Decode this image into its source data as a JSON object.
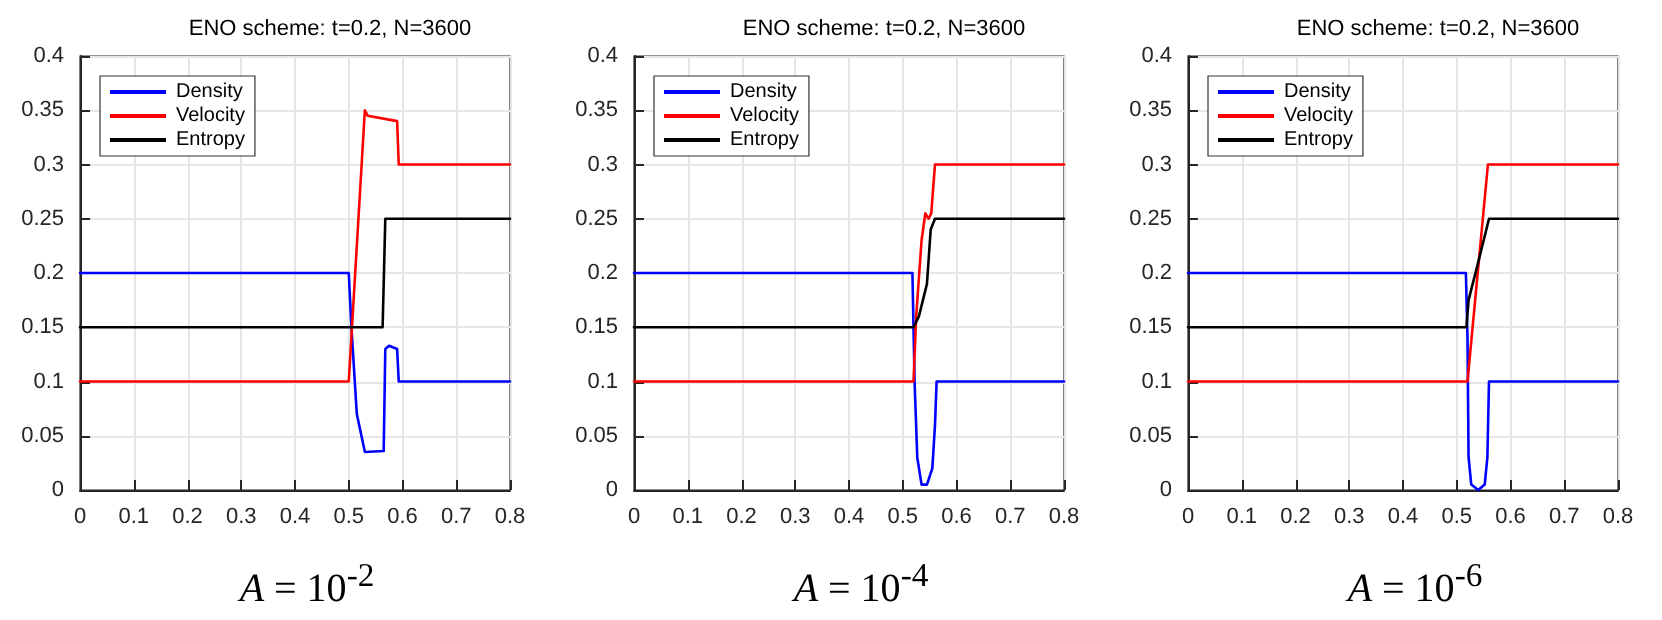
{
  "chart_data": [
    {
      "type": "line",
      "title": "ENO scheme: t=0.2, N=3600",
      "annotations": [
        "A = 10$^{-2}$"
      ],
      "xlim": [
        0,
        0.8
      ],
      "xticks": [
        0,
        0.1,
        0.2,
        0.3,
        0.4,
        0.5,
        0.6,
        0.7,
        0.8
      ],
      "ylim": [
        0,
        0.4
      ],
      "yticks": [
        0,
        0.05,
        0.1,
        0.15,
        0.2,
        0.25,
        0.3,
        0.35,
        0.4
      ],
      "grid": true,
      "legend": "top left",
      "marker": "none",
      "line_style": "solid",
      "series": [
        {
          "name": "Density",
          "color": "#0000ff",
          "x": [
            0,
            0.5,
            0.505,
            0.515,
            0.53,
            0.565,
            0.568,
            0.575,
            0.59,
            0.593,
            0.8
          ],
          "values": [
            0.2,
            0.2,
            0.15,
            0.07,
            0.035,
            0.036,
            0.13,
            0.133,
            0.13,
            0.1,
            0.1
          ]
        },
        {
          "name": "Velocity",
          "color": "#ff0000",
          "x": [
            0,
            0.5,
            0.53,
            0.535,
            0.59,
            0.593,
            0.8
          ],
          "values": [
            0.1,
            0.1,
            0.35,
            0.345,
            0.34,
            0.3,
            0.3
          ]
        },
        {
          "name": "Entropy",
          "color": "#000000",
          "x": [
            0,
            0.563,
            0.568,
            0.8
          ],
          "values": [
            0.15,
            0.15,
            0.25,
            0.25
          ]
        }
      ]
    },
    {
      "type": "line",
      "title": "ENO scheme: t=0.2, N=3600",
      "annotations": [
        "A = 10$^{-4}$"
      ],
      "xlim": [
        0,
        0.8
      ],
      "xticks": [
        0,
        0.1,
        0.2,
        0.3,
        0.4,
        0.5,
        0.6,
        0.7,
        0.8
      ],
      "ylim": [
        0,
        0.4
      ],
      "yticks": [
        0,
        0.05,
        0.1,
        0.15,
        0.2,
        0.25,
        0.3,
        0.35,
        0.4
      ],
      "grid": true,
      "legend": "top left",
      "marker": "none",
      "line_style": "solid",
      "series": [
        {
          "name": "Density",
          "color": "#0000ff",
          "x": [
            0,
            0.518,
            0.522,
            0.527,
            0.535,
            0.545,
            0.555,
            0.56,
            0.563,
            0.8
          ],
          "values": [
            0.2,
            0.2,
            0.1,
            0.03,
            0.005,
            0.005,
            0.02,
            0.06,
            0.1,
            0.1
          ]
        },
        {
          "name": "Velocity",
          "color": "#ff0000",
          "x": [
            0,
            0.52,
            0.525,
            0.535,
            0.542,
            0.548,
            0.553,
            0.56,
            0.8
          ],
          "values": [
            0.1,
            0.1,
            0.16,
            0.23,
            0.255,
            0.25,
            0.255,
            0.3,
            0.3
          ]
        },
        {
          "name": "Entropy",
          "color": "#000000",
          "x": [
            0,
            0.52,
            0.53,
            0.545,
            0.552,
            0.56,
            0.8
          ],
          "values": [
            0.15,
            0.15,
            0.16,
            0.19,
            0.24,
            0.25,
            0.25
          ]
        }
      ]
    },
    {
      "type": "line",
      "title": "ENO scheme: t=0.2, N=3600",
      "annotations": [
        "A = 10$^{-6}$"
      ],
      "xlim": [
        0,
        0.8
      ],
      "xticks": [
        0,
        0.1,
        0.2,
        0.3,
        0.4,
        0.5,
        0.6,
        0.7,
        0.8
      ],
      "ylim": [
        0,
        0.4
      ],
      "yticks": [
        0,
        0.05,
        0.1,
        0.15,
        0.2,
        0.25,
        0.3,
        0.35,
        0.4
      ],
      "grid": true,
      "legend": "top left",
      "marker": "none",
      "line_style": "solid",
      "series": [
        {
          "name": "Density",
          "color": "#0000ff",
          "x": [
            0,
            0.517,
            0.52,
            0.522,
            0.527,
            0.54,
            0.552,
            0.557,
            0.56,
            0.8
          ],
          "values": [
            0.2,
            0.2,
            0.14,
            0.03,
            0.005,
            0,
            0.005,
            0.03,
            0.1,
            0.1
          ]
        },
        {
          "name": "Velocity",
          "color": "#ff0000",
          "x": [
            0,
            0.52,
            0.558,
            0.8
          ],
          "values": [
            0.1,
            0.1,
            0.3,
            0.3
          ]
        },
        {
          "name": "Entropy",
          "color": "#000000",
          "x": [
            0,
            0.518,
            0.522,
            0.54,
            0.56,
            0.8
          ],
          "values": [
            0.15,
            0.15,
            0.175,
            0.21,
            0.25,
            0.25
          ]
        }
      ]
    }
  ]
}
